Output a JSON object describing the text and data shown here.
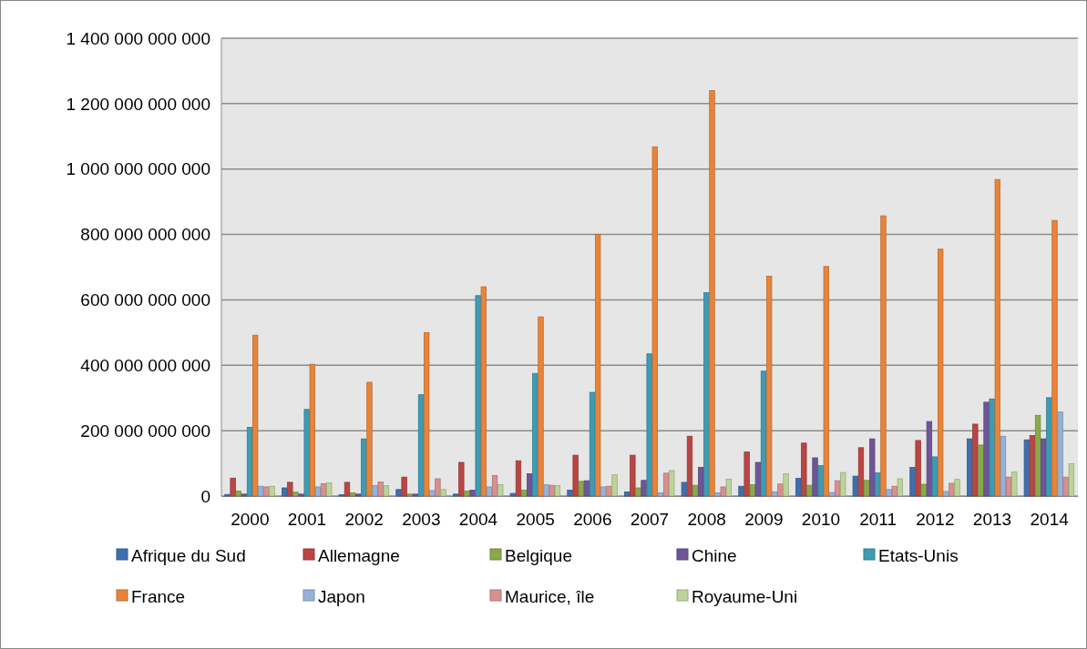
{
  "chart_data": {
    "type": "bar",
    "categories": [
      "2000",
      "2001",
      "2002",
      "2003",
      "2004",
      "2005",
      "2006",
      "2007",
      "2008",
      "2009",
      "2010",
      "2011",
      "2012",
      "2013",
      "2014"
    ],
    "series": [
      {
        "name": "Afrique du Sud",
        "color": "#3f6fad",
        "values": [
          5000000000,
          25000000000,
          4000000000,
          20000000000,
          6000000000,
          8000000000,
          18000000000,
          13000000000,
          42000000000,
          30000000000,
          54000000000,
          61000000000,
          88000000000,
          175000000000,
          172000000000
        ]
      },
      {
        "name": "Allemagne",
        "color": "#b94643",
        "values": [
          55000000000,
          42000000000,
          42000000000,
          58000000000,
          103000000000,
          108000000000,
          125000000000,
          125000000000,
          183000000000,
          135000000000,
          162000000000,
          148000000000,
          170000000000,
          220000000000,
          185000000000
        ]
      },
      {
        "name": "Belgique",
        "color": "#8aaa4a",
        "values": [
          15000000000,
          12000000000,
          10000000000,
          6000000000,
          15000000000,
          18000000000,
          45000000000,
          25000000000,
          33000000000,
          35000000000,
          33000000000,
          48000000000,
          36000000000,
          156000000000,
          247000000000
        ]
      },
      {
        "name": "Chine",
        "color": "#6f5596",
        "values": [
          6000000000,
          6000000000,
          6000000000,
          6000000000,
          18000000000,
          68000000000,
          47000000000,
          48000000000,
          88000000000,
          103000000000,
          117000000000,
          175000000000,
          228000000000,
          287000000000,
          175000000000
        ]
      },
      {
        "name": "Etats-Unis",
        "color": "#3e9bb3",
        "values": [
          210000000000,
          265000000000,
          175000000000,
          310000000000,
          613000000000,
          375000000000,
          317000000000,
          435000000000,
          622000000000,
          382000000000,
          93000000000,
          71000000000,
          120000000000,
          297000000000,
          301000000000
        ]
      },
      {
        "name": "France",
        "color": "#e8843a",
        "values": [
          492000000000,
          403000000000,
          348000000000,
          500000000000,
          640000000000,
          548000000000,
          800000000000,
          1068000000000,
          1240000000000,
          672000000000,
          702000000000,
          857000000000,
          755000000000,
          968000000000,
          843000000000
        ]
      },
      {
        "name": "Japon",
        "color": "#97b1d8",
        "values": [
          30000000000,
          28000000000,
          32000000000,
          17000000000,
          28000000000,
          35000000000,
          28000000000,
          10000000000,
          10000000000,
          13000000000,
          11000000000,
          20000000000,
          14000000000,
          183000000000,
          257000000000
        ]
      },
      {
        "name": "Maurice, île",
        "color": "#d8908e",
        "values": [
          28000000000,
          38000000000,
          43000000000,
          53000000000,
          63000000000,
          33000000000,
          30000000000,
          70000000000,
          28000000000,
          37000000000,
          47000000000,
          30000000000,
          39000000000,
          58000000000,
          58000000000
        ]
      },
      {
        "name": "Royaume-Uni",
        "color": "#bdd39a",
        "values": [
          30000000000,
          40000000000,
          32000000000,
          20000000000,
          35000000000,
          32000000000,
          65000000000,
          78000000000,
          52000000000,
          68000000000,
          72000000000,
          53000000000,
          51000000000,
          74000000000,
          99000000000
        ]
      }
    ],
    "ylim": [
      0,
      1400000000000
    ],
    "yticks": [
      0,
      {
        "value": 200000000000,
        "label": "200 000 000 000"
      },
      {
        "value": 400000000000,
        "label": "400 000 000 000"
      },
      {
        "value": 600000000000,
        "label": "600 000 000 000"
      },
      {
        "value": 800000000000,
        "label": "800 000 000 000"
      },
      {
        "value": 1000000000000,
        "label": "1 000 000 000 000"
      },
      {
        "value": 1200000000000,
        "label": "1 200 000 000 000"
      },
      {
        "value": 1400000000000,
        "label": "1 400 000 000 000"
      }
    ],
    "grid": "y",
    "legend": "bottom"
  }
}
